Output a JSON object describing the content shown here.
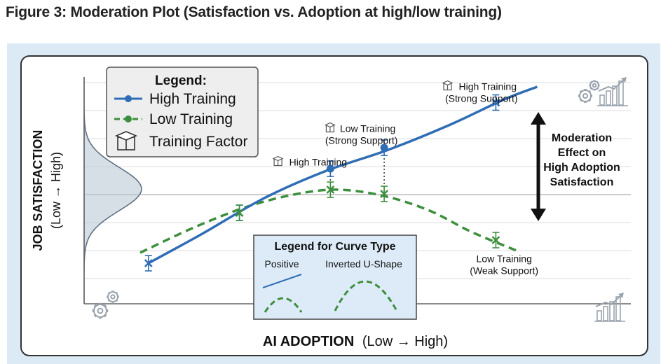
{
  "figure_title": "Figure 3: Moderation Plot (Satisfaction vs. Adoption at high/low training)",
  "colors": {
    "high_training": "#2f6db5",
    "low_training": "#3d8f3d",
    "panel_background": "#dbeaf5",
    "legend_background": "#eeeeee",
    "curve_legend_background": "#dcebf7",
    "distribution_fill": "#b7c4d2",
    "icon": "#9aa3ad"
  },
  "icons": [
    "gear-icon",
    "bar-chart-icon",
    "book-icon",
    "graduation-cap-icon"
  ],
  "chart_data": {
    "type": "line",
    "xlabel_bold": "AI ADOPTION",
    "xlabel_rest": "(Low → High)",
    "ylabel_bold": "JOB SATISFACTION",
    "ylabel_rest": "(Low → High)",
    "xlim": [
      0,
      10
    ],
    "ylim": [
      0,
      10
    ],
    "grid": true,
    "legend": {
      "title": "Legend:",
      "placement": "top-left",
      "entries": [
        "High Training",
        "Low Training",
        "Training Factor"
      ]
    },
    "series": [
      {
        "name": "High Training",
        "style": "solid",
        "curve": [
          [
            0.2,
            1.2
          ],
          [
            1.5,
            2.6
          ],
          [
            3.0,
            4.3
          ],
          [
            4.5,
            5.6
          ],
          [
            6.0,
            6.6
          ],
          [
            7.5,
            7.8
          ],
          [
            8.8,
            9.0
          ],
          [
            9.6,
            9.6
          ]
        ],
        "markers": [
          [
            0.2,
            1.2
          ],
          [
            2.4,
            3.6
          ],
          [
            4.6,
            5.7
          ],
          [
            5.9,
            6.7
          ],
          [
            8.6,
            8.85
          ]
        ],
        "marker_styles": [
          "x",
          "x",
          "dot",
          "dot",
          "x"
        ]
      },
      {
        "name": "Low Training",
        "style": "dashed",
        "curve": [
          [
            0.0,
            1.7
          ],
          [
            1.3,
            2.9
          ],
          [
            2.6,
            3.9
          ],
          [
            3.8,
            4.5
          ],
          [
            4.8,
            4.7
          ],
          [
            5.9,
            4.4
          ],
          [
            7.0,
            3.7
          ],
          [
            8.0,
            2.7
          ],
          [
            9.1,
            1.8
          ]
        ],
        "markers": [
          [
            2.4,
            3.6
          ],
          [
            4.6,
            4.7
          ],
          [
            5.9,
            4.5
          ],
          [
            8.6,
            2.3
          ]
        ],
        "marker_styles": [
          "x",
          "x",
          "x",
          "x"
        ]
      }
    ],
    "annotations": [
      {
        "text": "High Training",
        "lines": [
          "High Training"
        ],
        "x": 4.15,
        "y": 5.85,
        "anchor": "middle",
        "icon": true
      },
      {
        "text": "Low Training (Strong Support)",
        "lines": [
          "Low Training",
          "(Strong Support)"
        ],
        "x": 5.35,
        "y": 7.45,
        "anchor": "middle",
        "icon": true
      },
      {
        "text": "High Training (Strong Support)",
        "lines": [
          "High Training",
          "(Strong Support)"
        ],
        "x": 8.25,
        "y": 9.45,
        "anchor": "middle",
        "icon": true
      },
      {
        "text": "Low Training (Weak Support)",
        "lines": [
          "Low Training",
          "(Weak Support)"
        ],
        "x": 8.8,
        "y": 1.25,
        "anchor": "middle",
        "icon": false
      }
    ],
    "moderation_label": [
      "Moderation",
      "Effect on",
      "High Adoption",
      "Satisfaction"
    ],
    "curve_type_legend": {
      "title": "Legend for Curve Type",
      "labels": [
        "Positive",
        "Inverted U-Shape"
      ]
    }
  }
}
